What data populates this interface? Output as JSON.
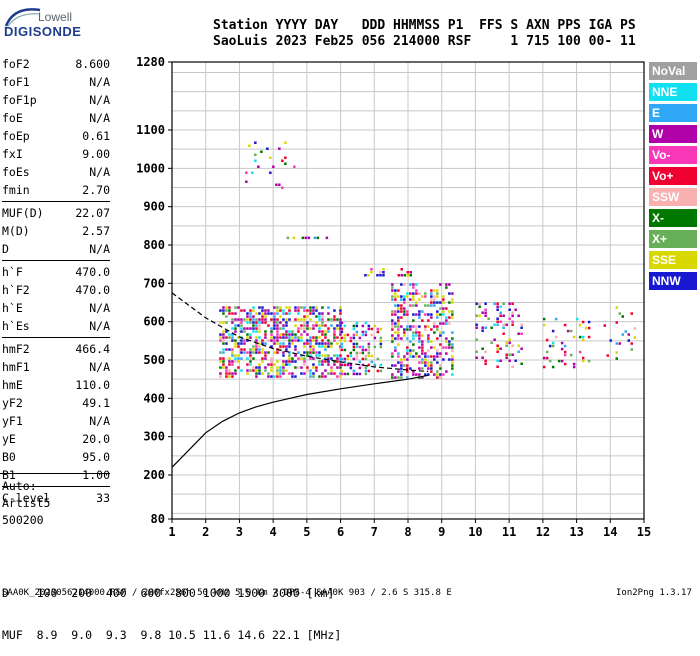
{
  "logo": {
    "line1": "Lowell",
    "line2": "DIGISONDE"
  },
  "header": {
    "line1": "Station YYYY DAY   DDD HHMMSS P1  FFS S AXN PPS IGA PS",
    "line2": "SaoLuis 2023 Feb25 056 214000 RSF     1 715 100 00- 11"
  },
  "params": [
    {
      "k": "foF2",
      "v": "8.600"
    },
    {
      "k": "foF1",
      "v": "N/A"
    },
    {
      "k": "foF1p",
      "v": "N/A"
    },
    {
      "k": "foE",
      "v": "N/A"
    },
    {
      "k": "foEp",
      "v": "0.61"
    },
    {
      "k": "fxI",
      "v": "9.00"
    },
    {
      "k": "foEs",
      "v": "N/A"
    },
    {
      "k": "fmin",
      "v": "2.70"
    },
    {
      "k": "MUF(D)",
      "v": "22.07"
    },
    {
      "k": "M(D)",
      "v": "2.57"
    },
    {
      "k": "D",
      "v": "N/A"
    },
    {
      "k": "h`F",
      "v": "470.0"
    },
    {
      "k": "h`F2",
      "v": "470.0"
    },
    {
      "k": "h`E",
      "v": "N/A"
    },
    {
      "k": "h`Es",
      "v": "N/A"
    },
    {
      "k": "hmF2",
      "v": "466.4"
    },
    {
      "k": "hmF1",
      "v": "N/A"
    },
    {
      "k": "hmE",
      "v": "110.0"
    },
    {
      "k": "yF2",
      "v": "49.1"
    },
    {
      "k": "yF1",
      "v": "N/A"
    },
    {
      "k": "yE",
      "v": "20.0"
    },
    {
      "k": "B0",
      "v": "95.0"
    },
    {
      "k": "B1",
      "v": "1.00"
    },
    {
      "k": "C-level",
      "v": "33"
    }
  ],
  "auto": {
    "line1": "Auto:",
    "line2": "Artist5",
    "line3": "500200"
  },
  "d_table": {
    "d_row": "D    100  200  400  600  800 1000 1500 3000 [km]",
    "muf_row": "MUF  8.9  9.0  9.3  9.8 10.5 11.6 14.6 22.1 [MHz]"
  },
  "footer": "SAA0K_2023056214000.RSF / 280fx256h 50 kHz 5.0 km / DPS-4 SAA0K 903 / 2.6 S 315.8 E",
  "version": "Ion2Png 1.3.17",
  "legend": [
    {
      "label": "NoVal",
      "color": "#a0a0a0"
    },
    {
      "label": "NNE",
      "color": "#10e0f0"
    },
    {
      "label": "E",
      "color": "#30a8f8"
    },
    {
      "label": "W",
      "color": "#b000a8"
    },
    {
      "label": "Vo-",
      "color": "#f838b8"
    },
    {
      "label": "Vo+",
      "color": "#f00030"
    },
    {
      "label": "SSW",
      "color": "#f8b0b0"
    },
    {
      "label": "X-",
      "color": "#007800"
    },
    {
      "label": "X+",
      "color": "#68b058"
    },
    {
      "label": "SSE",
      "color": "#d8d800"
    },
    {
      "label": "NNW",
      "color": "#1818d0"
    }
  ],
  "chart_data": {
    "type": "scatter",
    "title": "",
    "xlabel": "",
    "ylabel": "",
    "xlim": [
      1,
      15
    ],
    "ylim": [
      80,
      1280
    ],
    "x_ticks": [
      1,
      2,
      3,
      4,
      5,
      6,
      7,
      8,
      9,
      10,
      11,
      12,
      13,
      14,
      15
    ],
    "y_ticks": [
      80,
      200,
      300,
      400,
      500,
      600,
      700,
      800,
      900,
      1000,
      1100,
      1280
    ],
    "grid": true,
    "legend_position": "right",
    "echo_regions": [
      {
        "x": [
          2.4,
          6.0
        ],
        "y": [
          455,
          640
        ],
        "density": 0.55
      },
      {
        "x": [
          6.0,
          7.2
        ],
        "y": [
          460,
          600
        ],
        "density": 0.4
      },
      {
        "x": [
          7.5,
          9.3
        ],
        "y": [
          455,
          700
        ],
        "density": 0.45
      },
      {
        "x": [
          10.0,
          11.4
        ],
        "y": [
          480,
          650
        ],
        "density": 0.2
      },
      {
        "x": [
          12.0,
          13.4
        ],
        "y": [
          480,
          610
        ],
        "density": 0.15
      },
      {
        "x": [
          13.8,
          14.7
        ],
        "y": [
          500,
          640
        ],
        "density": 0.12
      },
      {
        "x": [
          2.9,
          4.6
        ],
        "y": [
          950,
          1070
        ],
        "density": 0.05
      },
      {
        "x": [
          6.7,
          7.3
        ],
        "y": [
          720,
          740
        ],
        "density": 0.4
      },
      {
        "x": [
          7.6,
          8.1
        ],
        "y": [
          720,
          740
        ],
        "density": 0.4
      },
      {
        "x": [
          4.4,
          5.6
        ],
        "y": [
          815,
          822
        ],
        "density": 0.5
      }
    ],
    "series": [
      {
        "type": "dashed",
        "x": [
          1.0,
          2.0,
          3.0,
          4.0,
          5.0,
          6.0,
          7.0,
          8.0,
          8.6
        ],
        "y": [
          675,
          610,
          560,
          530,
          510,
          495,
          482,
          474,
          470
        ]
      },
      {
        "type": "solid",
        "x": [
          1.0,
          1.5,
          2.0,
          2.5,
          3.0,
          3.5,
          4.0,
          4.5,
          5.0,
          6.0,
          7.0,
          8.0,
          8.6
        ],
        "y": [
          220,
          265,
          310,
          340,
          362,
          378,
          390,
          400,
          410,
          425,
          438,
          450,
          460
        ]
      }
    ]
  }
}
